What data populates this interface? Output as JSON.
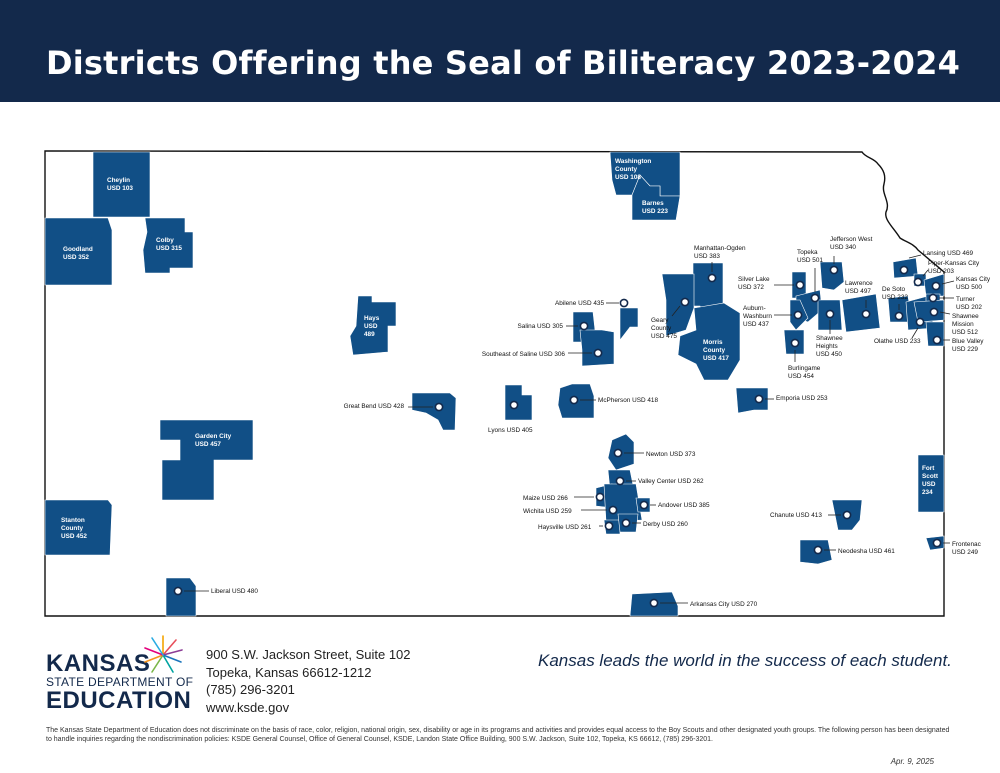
{
  "title": "Districts Offering the Seal of Biliteracy 2023-2024",
  "colors": {
    "header_bg": "#13294b",
    "district_fill": "#114f86",
    "district_dark": "#0d3d6b",
    "border": "#111111"
  },
  "districts": {
    "cheylin": [
      "Cheylin",
      "USD 103"
    ],
    "goodland": [
      "Goodland",
      "USD 352"
    ],
    "colby": [
      "Colby",
      "USD 315"
    ],
    "hays": [
      "Hays",
      "USD",
      "489"
    ],
    "garden_city": [
      "Garden City",
      "USD 457"
    ],
    "stanton": [
      "Stanton",
      "County",
      "USD 452"
    ],
    "washington": [
      "Washington",
      "County",
      "USD 108"
    ],
    "barnes": [
      "Barnes",
      "USD 223"
    ],
    "fort_scott": [
      "Fort",
      "Scott",
      "USD",
      "234"
    ],
    "great_bend": "Great Bend USD 428",
    "lyons": "Lyons USD 405",
    "mcpherson": "McPherson USD 418",
    "abilene": "Abilene USD 435",
    "salina": "Salina  USD 305",
    "southeast_saline": "Southeast of Saline USD 306",
    "manhattan": [
      "Manhattan-Ogden",
      "USD 383"
    ],
    "geary": [
      "Geary",
      "County",
      "USD 475"
    ],
    "morris": [
      "Morris",
      "County",
      "USD 417"
    ],
    "emporia": "Emporia USD 253",
    "burlingame": [
      "Burlingame",
      "USD 454"
    ],
    "silver_lake": [
      "Silver Lake",
      "USD 372"
    ],
    "topeka": [
      "Topeka",
      "USD 501"
    ],
    "auburn": [
      "Auburn-",
      "Washburn",
      "USD 437"
    ],
    "jefferson_west": [
      "Jefferson West",
      "USD 340"
    ],
    "shawnee_heights": [
      "Shawnee",
      "Heights",
      "USD 450"
    ],
    "lawrence": [
      "Lawrence",
      "USD 497"
    ],
    "de_soto": [
      "De Soto",
      "USD 232"
    ],
    "olathe": "Olathe USD 233",
    "lansing": "Lansing USD 469",
    "piper": [
      "Piper-Kansas City",
      "USD 203"
    ],
    "kansas_city": [
      "Kansas City",
      "USD 500"
    ],
    "turner": [
      "Turner",
      "USD 202"
    ],
    "shawnee_mission": [
      "Shawnee",
      "Mission",
      "USD 512"
    ],
    "blue_valley": [
      "Blue Valley",
      "USD 229"
    ],
    "newton": "Newton USD 373",
    "valley_center": "Valley Center USD 262",
    "maize": "Maize USD 266",
    "wichita": "Wichita USD 259",
    "andover": "Andover USD 385",
    "haysville": "Haysville USD 261",
    "derby": "Derby USD 260",
    "chanute": "Chanute USD 413",
    "neodesha": "Neodesha USD 461",
    "frontenac": [
      "Frontenac",
      "USD 249"
    ],
    "liberal": "Liberal USD 480",
    "arkansas_city": "Arkansas City USD 270"
  },
  "logo": {
    "line1": "KANSAS",
    "line2": "STATE DEPARTMENT OF",
    "line3": "EDUCATION"
  },
  "address": [
    "900 S.W. Jackson Street, Suite 102",
    "Topeka, Kansas 66612-1212",
    "(785) 296-3201",
    "www.ksde.gov"
  ],
  "tagline": "Kansas leads the world in the success of each student.",
  "disclaimer": "The Kansas State Department of Education does not discriminate on the basis of race, color, religion, national origin, sex, disability or age in its programs and activities and provides equal access to the Boy Scouts and other designated youth groups. The following person has been designated to handle inquiries regarding the nondiscrimination policies: KSDE General Counsel, Office of General Counsel, KSDE, Landon State Office Building, 900 S.W. Jackson, Suite 102, Topeka, KS 66612, (785) 296-3201.",
  "date": "Apr. 9, 2025"
}
